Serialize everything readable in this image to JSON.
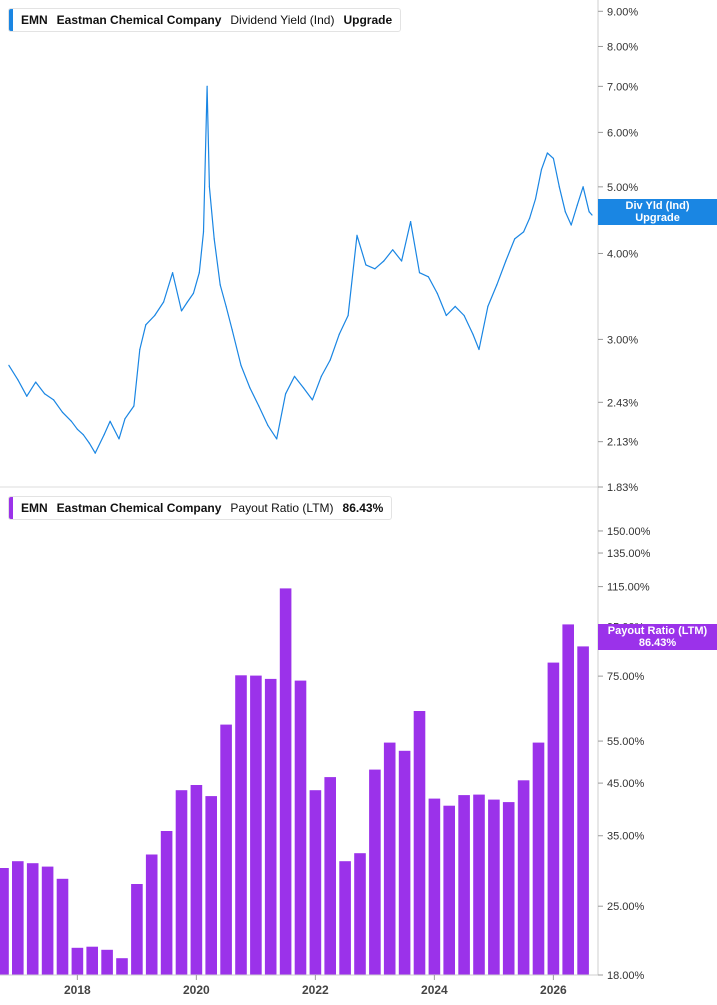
{
  "chart_data": [
    {
      "type": "line",
      "ticker": "EMN",
      "company": "Eastman Chemical Company",
      "metric": "Dividend Yield (Ind)",
      "action": "Upgrade",
      "color": "#1a86e3",
      "y_scale": "log",
      "ylim": [
        1.83,
        9.1
      ],
      "y_ticks": [
        "9.00%",
        "8.00%",
        "7.00%",
        "6.00%",
        "5.00%",
        "4.00%",
        "3.00%",
        "2.43%",
        "2.13%",
        "1.83%"
      ],
      "tag_line1": "Div Yld (Ind)",
      "tag_line2": "Upgrade",
      "last_value": 4.55,
      "x": [
        2016.85,
        2017.0,
        2017.15,
        2017.3,
        2017.45,
        2017.6,
        2017.75,
        2017.9,
        2018.0,
        2018.1,
        2018.2,
        2018.3,
        2018.45,
        2018.55,
        2018.7,
        2018.8,
        2018.95,
        2019.05,
        2019.15,
        2019.3,
        2019.45,
        2019.6,
        2019.75,
        2019.85,
        2019.95,
        2020.05,
        2020.12,
        2020.18,
        2020.22,
        2020.3,
        2020.4,
        2020.5,
        2020.6,
        2020.75,
        2020.9,
        2021.05,
        2021.2,
        2021.35,
        2021.5,
        2021.65,
        2021.8,
        2021.95,
        2022.1,
        2022.25,
        2022.4,
        2022.55,
        2022.7,
        2022.85,
        2023.0,
        2023.15,
        2023.3,
        2023.45,
        2023.6,
        2023.75,
        2023.9,
        2024.05,
        2024.2,
        2024.35,
        2024.5,
        2024.65,
        2024.75,
        2024.9,
        2025.05,
        2025.2,
        2025.35,
        2025.5,
        2025.6,
        2025.7,
        2025.8,
        2025.9,
        2026.0,
        2026.1,
        2026.2,
        2026.3,
        2026.4,
        2026.5,
        2026.6,
        2026.65
      ],
      "values": [
        2.75,
        2.62,
        2.48,
        2.6,
        2.5,
        2.45,
        2.35,
        2.28,
        2.22,
        2.18,
        2.12,
        2.05,
        2.18,
        2.28,
        2.15,
        2.3,
        2.4,
        2.9,
        3.15,
        3.25,
        3.4,
        3.75,
        3.3,
        3.4,
        3.5,
        3.75,
        4.3,
        7.0,
        5.0,
        4.2,
        3.6,
        3.35,
        3.1,
        2.75,
        2.55,
        2.4,
        2.25,
        2.15,
        2.5,
        2.65,
        2.55,
        2.45,
        2.65,
        2.8,
        3.05,
        3.25,
        4.25,
        3.85,
        3.8,
        3.9,
        4.05,
        3.9,
        4.45,
        3.75,
        3.7,
        3.5,
        3.25,
        3.35,
        3.25,
        3.05,
        2.9,
        3.35,
        3.6,
        3.9,
        4.2,
        4.3,
        4.5,
        4.8,
        5.3,
        5.6,
        5.5,
        5.0,
        4.6,
        4.4,
        4.7,
        5.0,
        4.6,
        4.55
      ]
    },
    {
      "type": "bar",
      "ticker": "EMN",
      "company": "Eastman Chemical Company",
      "metric": "Payout Ratio (LTM)",
      "display_value": "86.43%",
      "color": "#9b32ea",
      "y_scale": "log",
      "ylim": [
        18.0,
        165.0
      ],
      "y_ticks": [
        "150.00%",
        "135.00%",
        "115.00%",
        "95.00%",
        "75.00%",
        "55.00%",
        "45.00%",
        "35.00%",
        "25.00%",
        "18.00%"
      ],
      "tag_line1": "Payout Ratio (LTM)",
      "tag_line2": "86.43%",
      "last_value": 86.43,
      "x": [
        2016.75,
        2017.0,
        2017.25,
        2017.5,
        2017.75,
        2018.0,
        2018.25,
        2018.5,
        2018.75,
        2019.0,
        2019.25,
        2019.5,
        2019.75,
        2020.0,
        2020.25,
        2020.5,
        2020.75,
        2021.0,
        2021.25,
        2021.5,
        2021.75,
        2022.0,
        2022.25,
        2022.5,
        2022.75,
        2023.0,
        2023.25,
        2023.5,
        2023.75,
        2024.0,
        2024.25,
        2024.5,
        2024.75,
        2025.0,
        2025.25,
        2025.5,
        2025.75,
        2026.0,
        2026.25,
        2026.5
      ],
      "values": [
        30.0,
        31.0,
        30.7,
        30.2,
        28.5,
        20.5,
        20.6,
        20.3,
        19.5,
        27.8,
        32.0,
        35.8,
        43.5,
        44.6,
        42.3,
        59.5,
        75.3,
        75.2,
        74.0,
        114.0,
        73.4,
        43.5,
        46.3,
        31.0,
        32.2,
        48.0,
        54.6,
        52.5,
        63.5,
        41.8,
        40.4,
        42.5,
        42.6,
        41.6,
        41.1,
        45.6,
        54.6,
        80.0,
        96.0,
        86.43
      ]
    }
  ],
  "x_axis": {
    "ticks": [
      2018,
      2020,
      2022,
      2024,
      2026
    ],
    "labels": [
      "2018",
      "2020",
      "2022",
      "2024",
      "2026"
    ],
    "xlim": [
      2016.7,
      2026.75
    ]
  }
}
